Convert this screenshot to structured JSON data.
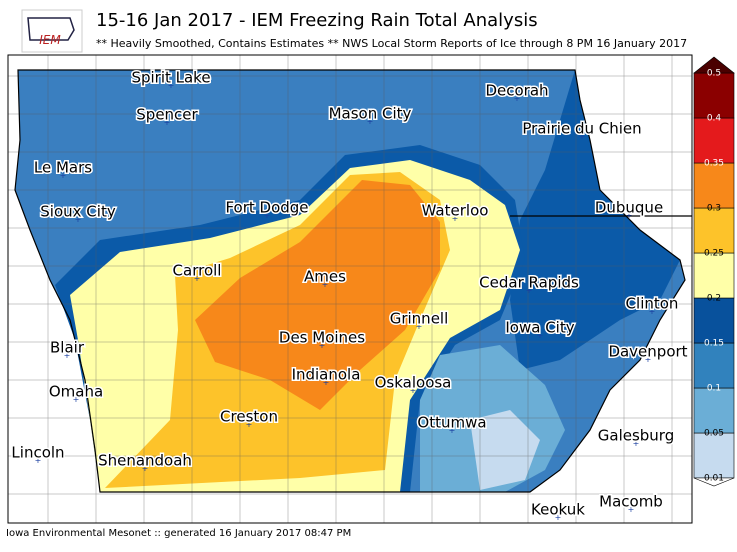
{
  "header": {
    "logo": "IEM",
    "title": "15-16 Jan 2017 - IEM Freezing Rain Total Analysis",
    "subtitle": "** Heavily Smoothed, Contains Estimates ** NWS Local Storm Reports of Ice through 8 PM 16 January 2017"
  },
  "cities": [
    "Spirit Lake",
    "Spencer",
    "Mason City",
    "Decorah",
    "Prairie du Chien",
    "Le Mars",
    "Sioux City",
    "Fort Dodge",
    "Waterloo",
    "Dubuque",
    "Carroll",
    "Ames",
    "Cedar Rapids",
    "Clinton",
    "Grinnell",
    "Des Moines",
    "Iowa City",
    "Blair",
    "Davenport",
    "Indianola",
    "Oskaloosa",
    "Omaha",
    "Creston",
    "Ottumwa",
    "Galesburg",
    "Lincoln",
    "Shenandoah",
    "Keokuk",
    "Macomb"
  ],
  "legend": {
    "ticks": [
      0.01,
      0.05,
      0.1,
      0.15,
      0.2,
      0.25,
      0.3,
      0.35,
      0.4,
      0.5
    ],
    "colors": [
      "#c6dbef",
      "#6baed6",
      "#3182bd",
      "#08519c",
      "#ffffa8",
      "#fdc32a",
      "#f7881a",
      "#e41a1c",
      "#8b0000",
      "#4a0000"
    ]
  },
  "footer": "Iowa Environmental Mesonet :: generated 16 January 2017 08:47 PM"
}
